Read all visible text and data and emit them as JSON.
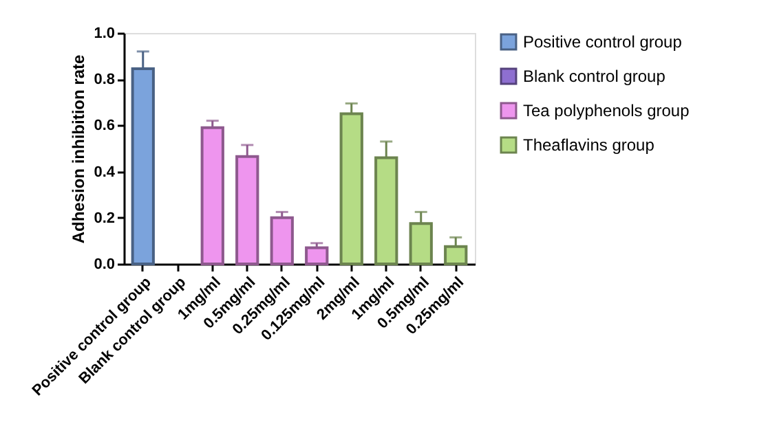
{
  "chart_data": {
    "type": "bar",
    "ylabel": "Adhesion inhibition rate",
    "categories": [
      "Positive control group",
      "Blank control group",
      "1mg/ml",
      "0.5mg/ml",
      "0.25mg/ml",
      "0.125mg/ml",
      "2mg/ml",
      "1mg/ml",
      "0.5mg/ml",
      "0.25mg/ml"
    ],
    "series": [
      {
        "name": "Positive control group",
        "color": "#7ba3dc",
        "values": [
          0.845,
          null,
          null,
          null,
          null,
          null,
          null,
          null,
          null,
          null
        ],
        "errors": [
          [
            0.845,
            0.92
          ],
          null,
          null,
          null,
          null,
          null,
          null,
          null,
          null,
          null
        ]
      },
      {
        "name": "Blank control group",
        "color": "#8e6fd0",
        "values": [
          null,
          null,
          null,
          null,
          null,
          null,
          null,
          null,
          null,
          null
        ]
      },
      {
        "name": "Tea polyphenols group",
        "color": "#ee95ee",
        "values": [
          null,
          null,
          0.59,
          0.465,
          0.2,
          0.07,
          null,
          null,
          null,
          null
        ],
        "errors": [
          null,
          null,
          [
            0.59,
            0.62
          ],
          [
            0.465,
            0.515
          ],
          [
            0.2,
            0.225
          ],
          [
            0.07,
            0.09
          ],
          null,
          null,
          null,
          null
        ]
      },
      {
        "name": "Theaflavins group",
        "color": "#b5dc85",
        "values": [
          null,
          null,
          null,
          null,
          null,
          null,
          0.65,
          0.46,
          0.175,
          0.075
        ],
        "errors": [
          null,
          null,
          null,
          null,
          null,
          null,
          [
            0.65,
            0.695
          ],
          [
            0.46,
            0.53
          ],
          [
            0.175,
            0.225
          ],
          [
            0.075,
            0.115
          ]
        ]
      }
    ],
    "ylim": [
      0,
      1
    ],
    "yticks": [
      {
        "value": 0,
        "label": "0.0"
      },
      {
        "value": 0.2,
        "label": "0.2"
      },
      {
        "value": 0.4,
        "label": "0.4"
      },
      {
        "value": 0.6,
        "label": "0.6"
      },
      {
        "value": 0.8,
        "label": "0.8"
      },
      {
        "value": 1,
        "label": "1.0"
      }
    ],
    "grid": false,
    "legend": "right"
  }
}
